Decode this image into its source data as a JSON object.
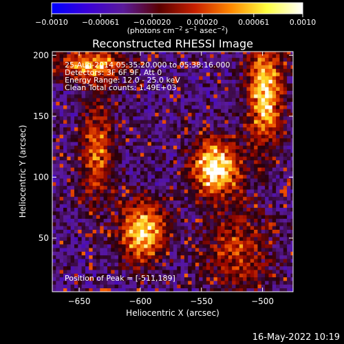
{
  "chart_data": {
    "type": "heatmap",
    "title": "Reconstructed RHESSI Image",
    "xlabel": "Heliocentric X (arcsec)",
    "ylabel": "Heliocentric Y (arcsec)",
    "xlim": [
      -672,
      -475
    ],
    "ylim": [
      6,
      203
    ],
    "x_ticks": [
      -650,
      -600,
      -550,
      -500
    ],
    "y_ticks": [
      50,
      100,
      150,
      200
    ],
    "colorbar": {
      "range": [
        -0.001,
        0.001
      ],
      "ticks": [
        -0.001,
        -0.00061,
        -0.0002,
        0.0002,
        0.00061,
        0.001
      ],
      "tick_labels": [
        "−0.0010",
        "−0.00061",
        "−0.00020",
        "0.00020",
        "0.00061",
        "0.0010"
      ],
      "unit_prefix": "(photons cm",
      "unit_exp1": "−2",
      "unit_mid": " s",
      "unit_exp2": "−1",
      "unit_mid2": " asec",
      "unit_exp3": "−2",
      "unit_suffix": ")",
      "colors": [
        "#0000ff",
        "#3a00d8",
        "#5a1a9a",
        "#5a0000",
        "#c82000",
        "#ff8800",
        "#ffff40",
        "#ffffff"
      ]
    },
    "annotations": [
      "25-Aug-2014 05:35:20.000 to 05:38:16.000",
      "Detectors: 3F 6F 9F, Att 0",
      "Energy Range: 12.0 - 25.0 keV",
      "Clean    Total counts: 1.49E+03"
    ],
    "peak_label": "Position of Peak = [-511,189]",
    "peak": [
      -511,
      189
    ],
    "sources": [
      {
        "x": -538,
        "y": 108,
        "sx": 14,
        "sy": 16,
        "amp": 1.0
      },
      {
        "x": -598,
        "y": 55,
        "sx": 13,
        "sy": 18,
        "amp": 0.85
      },
      {
        "x": -498,
        "y": 170,
        "sx": 10,
        "sy": 30,
        "amp": 0.9
      },
      {
        "x": -640,
        "y": 192,
        "sx": 20,
        "sy": 10,
        "amp": 0.7
      },
      {
        "x": -635,
        "y": 120,
        "sx": 10,
        "sy": 30,
        "amp": 0.55
      },
      {
        "x": -520,
        "y": 40,
        "sx": 20,
        "sy": 25,
        "amp": 0.45
      }
    ]
  },
  "footer": {
    "timestamp": "16-May-2022 10:19"
  }
}
